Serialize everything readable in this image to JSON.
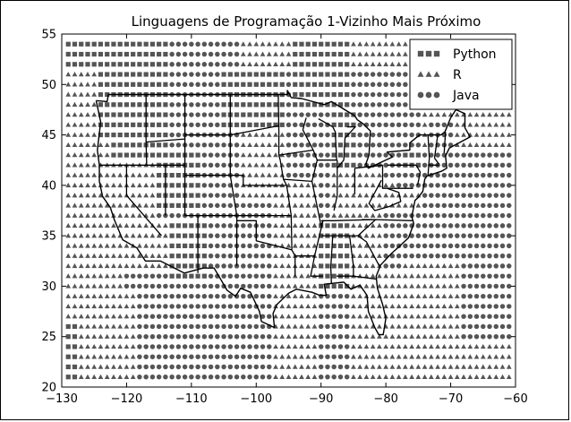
{
  "chart_data": {
    "type": "scatter",
    "title": "Linguagens de Programação 1-Vizinho Mais Próximo",
    "xlabel": "",
    "ylabel": "",
    "xlim": [
      -130,
      -60
    ],
    "ylim": [
      20,
      55
    ],
    "x_ticks": [
      -130,
      -120,
      -110,
      -100,
      -90,
      -80,
      -70,
      -60
    ],
    "y_ticks": [
      20,
      25,
      30,
      35,
      40,
      45,
      50,
      55
    ],
    "grid": false,
    "legend_position": "top-right",
    "marker_color": "#555555",
    "series": [
      {
        "name": "Python",
        "marker": "square"
      },
      {
        "name": "R",
        "marker": "triangle"
      },
      {
        "name": "Java",
        "marker": "circle"
      }
    ],
    "grid_step": 1,
    "decision_regions": [
      {
        "x": [
          -130,
          -124
        ],
        "y": [
          52,
          55
        ],
        "series": "Python"
      },
      {
        "x": [
          -124,
          -113
        ],
        "y": [
          49,
          55
        ],
        "series": "Python"
      },
      {
        "x": [
          -113,
          -102
        ],
        "y": [
          52,
          55
        ],
        "series": "Java"
      },
      {
        "x": [
          -102,
          -94
        ],
        "y": [
          52,
          55
        ],
        "series": "R"
      },
      {
        "x": [
          -94,
          -85
        ],
        "y": [
          48,
          55
        ],
        "series": "Python"
      },
      {
        "x": [
          -85,
          -74
        ],
        "y": [
          52,
          55
        ],
        "series": "R"
      },
      {
        "x": [
          -74,
          -60
        ],
        "y": [
          44,
          55
        ],
        "series": "R"
      },
      {
        "x": [
          -130,
          -124
        ],
        "y": [
          45,
          52
        ],
        "series": "R"
      },
      {
        "x": [
          -124,
          -113
        ],
        "y": [
          43,
          49
        ],
        "series": "Python"
      },
      {
        "x": [
          -113,
          -105
        ],
        "y": [
          44,
          52
        ],
        "series": "Java"
      },
      {
        "x": [
          -105,
          -95
        ],
        "y": [
          46,
          52
        ],
        "series": "Python"
      },
      {
        "x": [
          -95,
          -88
        ],
        "y": [
          41,
          48
        ],
        "series": "Java"
      },
      {
        "x": [
          -88,
          -84
        ],
        "y": [
          42,
          48
        ],
        "series": "Python"
      },
      {
        "x": [
          -84,
          -77
        ],
        "y": [
          43,
          52
        ],
        "series": "Java"
      },
      {
        "x": [
          -77,
          -73
        ],
        "y": [
          41,
          44
        ],
        "series": "Python"
      },
      {
        "x": [
          -73,
          -69
        ],
        "y": [
          43,
          47
        ],
        "series": "Java"
      },
      {
        "x": [
          -130,
          -122
        ],
        "y": [
          37,
          45
        ],
        "series": "R"
      },
      {
        "x": [
          -122,
          -115
        ],
        "y": [
          37,
          43
        ],
        "series": "R"
      },
      {
        "x": [
          -115,
          -108
        ],
        "y": [
          38,
          44
        ],
        "series": "Python"
      },
      {
        "x": [
          -108,
          -102
        ],
        "y": [
          37,
          43
        ],
        "series": "Java"
      },
      {
        "x": [
          -102,
          -95
        ],
        "y": [
          39,
          46
        ],
        "series": "R"
      },
      {
        "x": [
          -88,
          -80
        ],
        "y": [
          37,
          42
        ],
        "series": "R"
      },
      {
        "x": [
          -80,
          -73
        ],
        "y": [
          38,
          41
        ],
        "series": "R"
      },
      {
        "x": [
          -78,
          -74
        ],
        "y": [
          40,
          42
        ],
        "series": "Java"
      },
      {
        "x": [
          -130,
          -120
        ],
        "y": [
          30,
          37
        ],
        "series": "R"
      },
      {
        "x": [
          -120,
          -113
        ],
        "y": [
          32,
          37
        ],
        "series": "R"
      },
      {
        "x": [
          -113,
          -107
        ],
        "y": [
          31,
          37
        ],
        "series": "Python"
      },
      {
        "x": [
          -107,
          -102
        ],
        "y": [
          33,
          37
        ],
        "series": "Java"
      },
      {
        "x": [
          -102,
          -97
        ],
        "y": [
          34,
          39
        ],
        "series": "Java"
      },
      {
        "x": [
          -97,
          -90
        ],
        "y": [
          34,
          41
        ],
        "series": "R"
      },
      {
        "x": [
          -90,
          -85
        ],
        "y": [
          30,
          37
        ],
        "series": "Python"
      },
      {
        "x": [
          -85,
          -80
        ],
        "y": [
          32,
          37
        ],
        "series": "R"
      },
      {
        "x": [
          -80,
          -74
        ],
        "y": [
          33,
          38
        ],
        "series": "Java"
      },
      {
        "x": [
          -130,
          -118
        ],
        "y": [
          20,
          30
        ],
        "series": "R"
      },
      {
        "x": [
          -130,
          -127
        ],
        "y": [
          20,
          27
        ],
        "series": "Python"
      },
      {
        "x": [
          -118,
          -107
        ],
        "y": [
          20,
          31
        ],
        "series": "Java"
      },
      {
        "x": [
          -107,
          -97
        ],
        "y": [
          20,
          34
        ],
        "series": "Java"
      },
      {
        "x": [
          -97,
          -90
        ],
        "y": [
          20,
          34
        ],
        "series": "R"
      },
      {
        "x": [
          -90,
          -85
        ],
        "y": [
          20,
          30
        ],
        "series": "Java"
      },
      {
        "x": [
          -85,
          -77
        ],
        "y": [
          20,
          32
        ],
        "series": "R"
      },
      {
        "x": [
          -77,
          -60
        ],
        "y": [
          20,
          33
        ],
        "series": "R"
      },
      {
        "x": [
          -74,
          -60
        ],
        "y": [
          33,
          44
        ],
        "series": "Java"
      },
      {
        "x": [
          -68,
          -60
        ],
        "y": [
          25,
          33
        ],
        "series": "Java"
      }
    ],
    "boundary_outline": [
      [
        -124.7,
        48.4
      ],
      [
        -123,
        48.3
      ],
      [
        -122.8,
        49
      ],
      [
        -95.2,
        49
      ],
      [
        -95.2,
        49.4
      ],
      [
        -94.6,
        48.7
      ],
      [
        -93,
        48.6
      ],
      [
        -89.5,
        48
      ],
      [
        -88.4,
        48.3
      ],
      [
        -84.8,
        46.9
      ],
      [
        -84.4,
        46.5
      ],
      [
        -83.5,
        46.1
      ],
      [
        -82.4,
        45.4
      ],
      [
        -82.6,
        43
      ],
      [
        -83.1,
        42.1
      ],
      [
        -82.7,
        41.7
      ],
      [
        -79,
        42.8
      ],
      [
        -79.8,
        43.3
      ],
      [
        -76.3,
        43.5
      ],
      [
        -76.3,
        44.2
      ],
      [
        -74.8,
        45
      ],
      [
        -71.5,
        45
      ],
      [
        -70.9,
        45.3
      ],
      [
        -70,
        46.7
      ],
      [
        -69.2,
        47.5
      ],
      [
        -67.8,
        47.1
      ],
      [
        -67.8,
        45.7
      ],
      [
        -67,
        44.8
      ],
      [
        -70.2,
        43.7
      ],
      [
        -70.8,
        42.9
      ],
      [
        -70.6,
        41.7
      ],
      [
        -71.4,
        41.4
      ],
      [
        -73.7,
        40.9
      ],
      [
        -74,
        40.6
      ],
      [
        -74.3,
        39.4
      ],
      [
        -75,
        38.8
      ],
      [
        -75.5,
        38.5
      ],
      [
        -76,
        36.9
      ],
      [
        -75.7,
        36.2
      ],
      [
        -76.5,
        34.8
      ],
      [
        -78,
        33.9
      ],
      [
        -79.2,
        33.2
      ],
      [
        -80.8,
        32.1
      ],
      [
        -81.5,
        31
      ],
      [
        -81.3,
        29.8
      ],
      [
        -80.5,
        28.2
      ],
      [
        -80,
        26.8
      ],
      [
        -80.4,
        25.2
      ],
      [
        -81.1,
        25.2
      ],
      [
        -81.7,
        25.9
      ],
      [
        -82.7,
        27.5
      ],
      [
        -82.9,
        29.1
      ],
      [
        -84,
        30.1
      ],
      [
        -85.4,
        29.7
      ],
      [
        -86.5,
        30.4
      ],
      [
        -88,
        30.3
      ],
      [
        -89.5,
        30.2
      ],
      [
        -89.2,
        29.1
      ],
      [
        -90.2,
        29.1
      ],
      [
        -91.4,
        29.4
      ],
      [
        -93.8,
        29.7
      ],
      [
        -95,
        29.3
      ],
      [
        -96.8,
        28.2
      ],
      [
        -97.4,
        27.3
      ],
      [
        -97.2,
        25.9
      ],
      [
        -99.2,
        26.5
      ],
      [
        -99.5,
        27.5
      ],
      [
        -100.9,
        29.4
      ],
      [
        -102.4,
        29.8
      ],
      [
        -103.2,
        29
      ],
      [
        -104.5,
        29.6
      ],
      [
        -106.5,
        31.8
      ],
      [
        -108.2,
        31.8
      ],
      [
        -111.1,
        31.3
      ],
      [
        -114.8,
        32.5
      ],
      [
        -117.1,
        32.5
      ],
      [
        -118.4,
        33.8
      ],
      [
        -120.6,
        34.6
      ],
      [
        -121.9,
        36.6
      ],
      [
        -122.5,
        37.8
      ],
      [
        -123.7,
        38.9
      ],
      [
        -124.2,
        40.4
      ],
      [
        -124.2,
        42
      ],
      [
        -124.5,
        43.5
      ],
      [
        -124,
        46.3
      ],
      [
        -124.7,
        48.4
      ]
    ],
    "internal_lines": [
      [
        [
          -117,
          49
        ],
        [
          -117,
          44.3
        ],
        [
          -116.9,
          42
        ]
      ],
      [
        [
          -111,
          49
        ],
        [
          -111,
          45
        ],
        [
          -111,
          41
        ],
        [
          -111,
          37
        ],
        [
          -109,
          37
        ],
        [
          -109,
          31.3
        ]
      ],
      [
        [
          -104,
          49
        ],
        [
          -104,
          45
        ],
        [
          -104,
          41
        ],
        [
          -103,
          37
        ],
        [
          -103,
          36.5
        ],
        [
          -103,
          32
        ]
      ],
      [
        [
          -96.6,
          49
        ],
        [
          -96.5,
          45.3
        ],
        [
          -96.5,
          43
        ],
        [
          -96.3,
          42.5
        ],
        [
          -95.8,
          40.6
        ],
        [
          -95.3,
          40
        ]
      ],
      [
        [
          -124.2,
          42
        ],
        [
          -120,
          42
        ],
        [
          -111,
          42
        ]
      ],
      [
        [
          -120,
          42
        ],
        [
          -120,
          39
        ],
        [
          -114.6,
          35
        ]
      ],
      [
        [
          -114,
          42
        ],
        [
          -114,
          37
        ]
      ],
      [
        [
          -117,
          44.3
        ],
        [
          -111,
          44.6
        ]
      ],
      [
        [
          -111,
          45
        ],
        [
          -104,
          45
        ],
        [
          -96.5,
          45.9
        ]
      ],
      [
        [
          -104,
          41
        ],
        [
          -111,
          41
        ]
      ],
      [
        [
          -104,
          41
        ],
        [
          -102,
          41
        ],
        [
          -102,
          40
        ],
        [
          -95.3,
          40
        ]
      ],
      [
        [
          -109,
          37
        ],
        [
          -94.6,
          37
        ]
      ],
      [
        [
          -103,
          36.5
        ],
        [
          -100,
          36.5
        ],
        [
          -100,
          34.5
        ],
        [
          -94.5,
          33.6
        ]
      ],
      [
        [
          -95.3,
          40
        ],
        [
          -94.6,
          37
        ],
        [
          -94.5,
          33.6
        ],
        [
          -94,
          33
        ],
        [
          -94,
          31
        ]
      ],
      [
        [
          -96.5,
          43
        ],
        [
          -91.2,
          43.5
        ]
      ],
      [
        [
          -95.8,
          40.6
        ],
        [
          -91.4,
          40.4
        ]
      ],
      [
        [
          -91.2,
          43.5
        ],
        [
          -90.6,
          42.5
        ],
        [
          -91.4,
          40.4
        ],
        [
          -90,
          36
        ],
        [
          -89.7,
          36.5
        ],
        [
          -91,
          33
        ],
        [
          -91.6,
          31
        ],
        [
          -89.7,
          31
        ]
      ],
      [
        [
          -94,
          33
        ],
        [
          -91,
          33
        ]
      ],
      [
        [
          -90,
          35
        ],
        [
          -88.2,
          35
        ],
        [
          -85.6,
          35
        ],
        [
          -84.3,
          35
        ],
        [
          -81.6,
          36.6
        ],
        [
          -75.9,
          36.5
        ]
      ],
      [
        [
          -90,
          36.5
        ],
        [
          -88,
          36.5
        ],
        [
          -82,
          36.6
        ]
      ],
      [
        [
          -88.2,
          35
        ],
        [
          -88.5,
          31.9
        ],
        [
          -88.4,
          30.3
        ]
      ],
      [
        [
          -85.6,
          35
        ],
        [
          -85,
          32
        ],
        [
          -85,
          31
        ],
        [
          -87.6,
          31
        ]
      ],
      [
        [
          -85,
          31
        ],
        [
          -81.5,
          30.7
        ]
      ],
      [
        [
          -84.3,
          35
        ],
        [
          -83,
          34.4
        ],
        [
          -81,
          32
        ]
      ],
      [
        [
          -81.6,
          36.6
        ],
        [
          -83.7,
          36.6
        ]
      ],
      [
        [
          -87.5,
          42.5
        ],
        [
          -87.5,
          39
        ],
        [
          -88,
          37.5
        ]
      ],
      [
        [
          -90.6,
          42.5
        ],
        [
          -87.5,
          42.5
        ]
      ],
      [
        [
          -84.8,
          41.7
        ],
        [
          -80.5,
          42
        ]
      ],
      [
        [
          -84.8,
          41.7
        ],
        [
          -84.8,
          39.1
        ]
      ],
      [
        [
          -80.5,
          42
        ],
        [
          -80.5,
          39.7
        ],
        [
          -75.8,
          39.7
        ]
      ],
      [
        [
          -79.8,
          39.7
        ],
        [
          -78,
          39.3
        ],
        [
          -77.7,
          38.4
        ],
        [
          -79.5,
          37.9
        ],
        [
          -81.7,
          37.5
        ],
        [
          -82.6,
          38.2
        ],
        [
          -80.7,
          40.5
        ]
      ],
      [
        [
          -79.8,
          42
        ],
        [
          -75.3,
          42
        ]
      ],
      [
        [
          -75.3,
          42
        ],
        [
          -74.7,
          41.3
        ],
        [
          -75.1,
          40
        ]
      ],
      [
        [
          -73.5,
          45
        ],
        [
          -73.3,
          42.7
        ],
        [
          -73.5,
          41
        ]
      ],
      [
        [
          -71.8,
          42
        ],
        [
          -73.5,
          42
        ]
      ],
      [
        [
          -72.5,
          42.7
        ],
        [
          -71.8,
          42.1
        ]
      ],
      [
        [
          -72,
          45
        ],
        [
          -72.5,
          42.7
        ]
      ],
      [
        [
          -70.8,
          45.3
        ],
        [
          -71,
          43.2
        ]
      ],
      [
        [
          -90.4,
          46.6
        ],
        [
          -88.2,
          45.8
        ],
        [
          -87.8,
          45.3
        ],
        [
          -87.6,
          42.5
        ]
      ],
      [
        [
          -92.3,
          46.7
        ],
        [
          -92.8,
          45.5
        ],
        [
          -91.2,
          43.5
        ]
      ],
      [
        [
          -86,
          45.8
        ],
        [
          -84.7,
          45.8
        ],
        [
          -86.3,
          44.7
        ],
        [
          -86.5,
          42.5
        ],
        [
          -87.5,
          41.7
        ]
      ]
    ]
  }
}
